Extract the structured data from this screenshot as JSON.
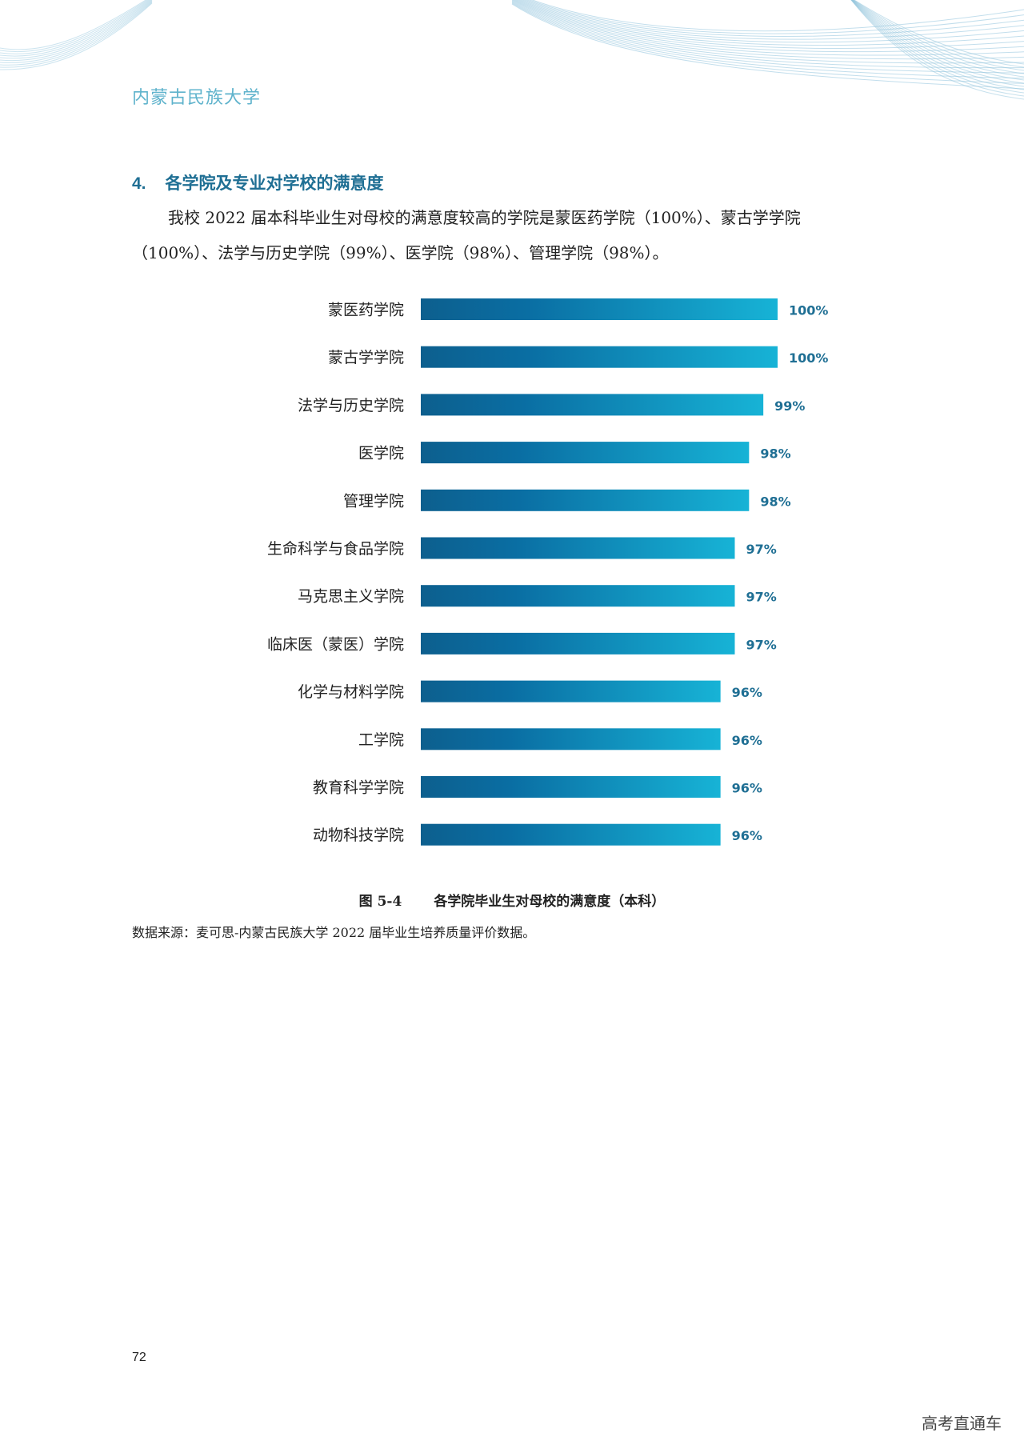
{
  "header": {
    "school_name": "内蒙古民族大学"
  },
  "section": {
    "number": "4.",
    "title": "各学院及专业对学校的满意度",
    "paragraph_line1": "我校 2022 届本科毕业生对母校的满意度较高的学院是蒙医药学院（100%）、蒙古学学院",
    "paragraph_line2": "（100%）、法学与历史学院（99%）、医学院（98%）、管理学院（98%）。"
  },
  "chart_data": {
    "type": "bar",
    "orientation": "horizontal",
    "categories": [
      "蒙医药学院",
      "蒙古学学院",
      "法学与历史学院",
      "医学院",
      "管理学院",
      "生命科学与食品学院",
      "马克思主义学院",
      "临床医（蒙医）学院",
      "化学与材料学院",
      "工学院",
      "教育科学学院",
      "动物科技学院"
    ],
    "values": [
      100,
      100,
      99,
      98,
      98,
      97,
      97,
      97,
      96,
      96,
      96,
      96
    ],
    "value_labels": [
      "100%",
      "100%",
      "99%",
      "98%",
      "98%",
      "97%",
      "97%",
      "97%",
      "96%",
      "96%",
      "96%",
      "96%"
    ],
    "xlim": [
      0,
      100
    ],
    "grid": false,
    "colors": {
      "bar_start": "#0d5f8e",
      "bar_mid": "#0a6ea3",
      "bar_end": "#17b3d6",
      "value_text": "#1f6f94"
    }
  },
  "figure": {
    "number": "图 5-4",
    "caption": "各学院毕业生对母校的满意度（本科）",
    "source": "数据来源：麦可思-内蒙古民族大学 2022 届毕业生培养质量评价数据。"
  },
  "footer": {
    "page_number": "72",
    "watermark": "高考直通车"
  }
}
